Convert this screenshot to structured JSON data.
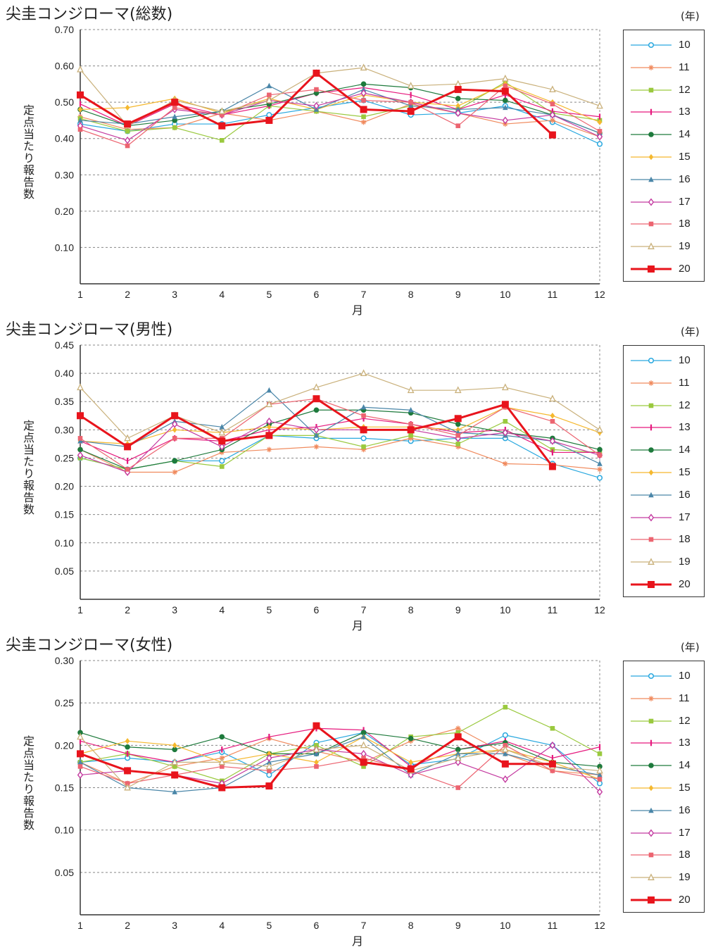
{
  "chart_data": [
    {
      "type": "line",
      "title": "尖圭コンジローマ(総数)",
      "unit_label": "(年)",
      "ylabel": "定点当たり報告数",
      "xlabel": "月",
      "x": [
        1,
        2,
        3,
        4,
        5,
        6,
        7,
        8,
        9,
        10,
        11,
        12
      ],
      "ylim": [
        0,
        0.7
      ],
      "yticks": [
        "0.70",
        "0.60",
        "0.50",
        "0.40",
        "0.30",
        "0.20",
        "0.10"
      ],
      "ytick_values": [
        0.7,
        0.6,
        0.5,
        0.4,
        0.3,
        0.2,
        0.1
      ],
      "grid": true,
      "legend_position": "right",
      "series": [
        {
          "name": "10",
          "color": "#29a8df",
          "marker": "circle-open",
          "values": [
            0.44,
            0.42,
            0.44,
            0.44,
            0.465,
            0.485,
            0.505,
            0.465,
            0.47,
            0.49,
            0.445,
            0.385
          ]
        },
        {
          "name": "11",
          "color": "#f08a5d",
          "marker": "star",
          "values": [
            0.46,
            0.425,
            0.43,
            0.47,
            0.45,
            0.475,
            0.445,
            0.495,
            0.47,
            0.44,
            0.45,
            0.405
          ]
        },
        {
          "name": "12",
          "color": "#9ac93e",
          "marker": "square",
          "values": [
            0.455,
            0.42,
            0.43,
            0.395,
            0.49,
            0.475,
            0.46,
            0.49,
            0.48,
            0.555,
            0.47,
            0.45
          ]
        },
        {
          "name": "13",
          "color": "#e6197d",
          "marker": "vbar",
          "values": [
            0.495,
            0.435,
            0.495,
            0.465,
            0.49,
            0.525,
            0.54,
            0.52,
            0.48,
            0.52,
            0.475,
            0.46
          ]
        },
        {
          "name": "14",
          "color": "#1e7a3c",
          "marker": "circle",
          "values": [
            0.48,
            0.435,
            0.45,
            0.475,
            0.495,
            0.525,
            0.55,
            0.54,
            0.51,
            0.505,
            0.465,
            0.415
          ]
        },
        {
          "name": "15",
          "color": "#f5b82e",
          "marker": "diamond",
          "values": [
            0.48,
            0.485,
            0.51,
            0.47,
            0.51,
            0.48,
            0.52,
            0.5,
            0.49,
            0.55,
            0.5,
            0.445
          ]
        },
        {
          "name": "16",
          "color": "#4a86a8",
          "marker": "triangle",
          "values": [
            0.45,
            0.44,
            0.46,
            0.475,
            0.545,
            0.48,
            0.535,
            0.49,
            0.48,
            0.485,
            0.465,
            0.415
          ]
        },
        {
          "name": "17",
          "color": "#c43aa0",
          "marker": "diamond-open",
          "values": [
            0.435,
            0.395,
            0.48,
            0.465,
            0.505,
            0.49,
            0.525,
            0.5,
            0.47,
            0.45,
            0.465,
            0.405
          ]
        },
        {
          "name": "18",
          "color": "#ec6470",
          "marker": "square",
          "values": [
            0.425,
            0.38,
            0.485,
            0.465,
            0.52,
            0.535,
            0.505,
            0.5,
            0.435,
            0.545,
            0.495,
            0.42
          ]
        },
        {
          "name": "19",
          "color": "#c9b07a",
          "marker": "triangle-open",
          "values": [
            0.59,
            0.435,
            0.505,
            0.475,
            0.505,
            0.58,
            0.595,
            0.545,
            0.55,
            0.565,
            0.535,
            0.49
          ]
        },
        {
          "name": "20",
          "color": "#e8141c",
          "marker": "square-bold",
          "values": [
            0.52,
            0.44,
            0.5,
            0.435,
            0.45,
            0.58,
            0.48,
            0.475,
            0.535,
            0.53,
            0.41,
            null
          ]
        }
      ]
    },
    {
      "type": "line",
      "title": "尖圭コンジローマ(男性)",
      "unit_label": "(年)",
      "ylabel": "定点当たり報告数",
      "xlabel": "月",
      "x": [
        1,
        2,
        3,
        4,
        5,
        6,
        7,
        8,
        9,
        10,
        11,
        12
      ],
      "ylim": [
        0,
        0.45
      ],
      "yticks": [
        "0.45",
        "0.40",
        "0.35",
        "0.30",
        "0.25",
        "0.20",
        "0.15",
        "0.10",
        "0.05"
      ],
      "ytick_values": [
        0.45,
        0.4,
        0.35,
        0.3,
        0.25,
        0.2,
        0.15,
        0.1,
        0.05
      ],
      "grid": true,
      "legend_position": "right",
      "series": [
        {
          "name": "10",
          "color": "#29a8df",
          "marker": "circle-open",
          "values": [
            0.25,
            0.23,
            0.245,
            0.245,
            0.29,
            0.285,
            0.285,
            0.28,
            0.285,
            0.285,
            0.24,
            0.215
          ]
        },
        {
          "name": "11",
          "color": "#f08a5d",
          "marker": "star",
          "values": [
            0.265,
            0.225,
            0.225,
            0.26,
            0.265,
            0.27,
            0.265,
            0.285,
            0.27,
            0.24,
            0.238,
            0.23
          ]
        },
        {
          "name": "12",
          "color": "#9ac93e",
          "marker": "square",
          "values": [
            0.25,
            0.23,
            0.245,
            0.235,
            0.29,
            0.29,
            0.27,
            0.29,
            0.275,
            0.315,
            0.265,
            0.26
          ]
        },
        {
          "name": "13",
          "color": "#e6197d",
          "marker": "vbar",
          "values": [
            0.28,
            0.245,
            0.285,
            0.28,
            0.3,
            0.305,
            0.32,
            0.31,
            0.295,
            0.3,
            0.26,
            0.26
          ]
        },
        {
          "name": "14",
          "color": "#1e7a3c",
          "marker": "circle",
          "values": [
            0.265,
            0.23,
            0.245,
            0.265,
            0.31,
            0.335,
            0.335,
            0.33,
            0.31,
            0.295,
            0.285,
            0.265
          ]
        },
        {
          "name": "15",
          "color": "#f5b82e",
          "marker": "diamond",
          "values": [
            0.28,
            0.275,
            0.3,
            0.295,
            0.305,
            0.3,
            0.305,
            0.305,
            0.3,
            0.34,
            0.325,
            0.295
          ]
        },
        {
          "name": "16",
          "color": "#4a86a8",
          "marker": "triangle",
          "values": [
            0.28,
            0.27,
            0.315,
            0.305,
            0.37,
            0.29,
            0.34,
            0.335,
            0.295,
            0.29,
            0.28,
            0.24
          ]
        },
        {
          "name": "17",
          "color": "#c43aa0",
          "marker": "diamond-open",
          "values": [
            0.255,
            0.225,
            0.31,
            0.27,
            0.315,
            0.3,
            0.3,
            0.3,
            0.285,
            0.295,
            0.28,
            0.255
          ]
        },
        {
          "name": "18",
          "color": "#ec6470",
          "marker": "square",
          "values": [
            0.285,
            0.23,
            0.285,
            0.285,
            0.345,
            0.355,
            0.325,
            0.31,
            0.29,
            0.34,
            0.315,
            0.255
          ]
        },
        {
          "name": "19",
          "color": "#c9b07a",
          "marker": "triangle-open",
          "values": [
            0.375,
            0.285,
            0.325,
            0.295,
            0.345,
            0.375,
            0.4,
            0.37,
            0.37,
            0.375,
            0.355,
            0.3
          ]
        },
        {
          "name": "20",
          "color": "#e8141c",
          "marker": "square-bold",
          "values": [
            0.325,
            0.27,
            0.325,
            0.28,
            0.29,
            0.355,
            0.3,
            0.3,
            0.32,
            0.345,
            0.235,
            null
          ]
        }
      ]
    },
    {
      "type": "line",
      "title": "尖圭コンジローマ(女性)",
      "unit_label": "(年)",
      "ylabel": "定点当たり報告数",
      "xlabel": "月",
      "x": [
        1,
        2,
        3,
        4,
        5,
        6,
        7,
        8,
        9,
        10,
        11,
        12
      ],
      "ylim": [
        0,
        0.3
      ],
      "yticks": [
        "0.30",
        "0.25",
        "0.20",
        "0.15",
        "0.10",
        "0.05"
      ],
      "ytick_values": [
        0.3,
        0.25,
        0.2,
        0.15,
        0.1,
        0.05
      ],
      "grid": true,
      "legend_position": "right",
      "series": [
        {
          "name": "10",
          "color": "#29a8df",
          "marker": "circle-open",
          "values": [
            0.18,
            0.185,
            0.18,
            0.192,
            0.165,
            0.203,
            0.215,
            0.177,
            0.184,
            0.212,
            0.2,
            0.155
          ]
        },
        {
          "name": "11",
          "color": "#f08a5d",
          "marker": "star",
          "values": [
            0.18,
            0.155,
            0.175,
            0.185,
            0.208,
            0.193,
            0.18,
            0.205,
            0.22,
            0.19,
            0.17,
            0.165
          ]
        },
        {
          "name": "12",
          "color": "#9ac93e",
          "marker": "square",
          "values": [
            0.18,
            0.19,
            0.175,
            0.158,
            0.19,
            0.2,
            0.175,
            0.21,
            0.215,
            0.245,
            0.22,
            0.19
          ]
        },
        {
          "name": "13",
          "color": "#e6197d",
          "marker": "vbar",
          "values": [
            0.205,
            0.19,
            0.18,
            0.195,
            0.21,
            0.22,
            0.218,
            0.175,
            0.195,
            0.205,
            0.185,
            0.198
          ]
        },
        {
          "name": "14",
          "color": "#1e7a3c",
          "marker": "circle",
          "values": [
            0.215,
            0.198,
            0.195,
            0.21,
            0.19,
            0.19,
            0.215,
            0.208,
            0.195,
            0.203,
            0.18,
            0.175
          ]
        },
        {
          "name": "15",
          "color": "#f5b82e",
          "marker": "diamond",
          "values": [
            0.19,
            0.205,
            0.2,
            0.18,
            0.19,
            0.18,
            0.21,
            0.18,
            0.19,
            0.195,
            0.18,
            0.16
          ]
        },
        {
          "name": "16",
          "color": "#4a86a8",
          "marker": "triangle",
          "values": [
            0.18,
            0.15,
            0.145,
            0.15,
            0.18,
            0.19,
            0.21,
            0.165,
            0.19,
            0.19,
            0.175,
            0.165
          ]
        },
        {
          "name": "17",
          "color": "#c43aa0",
          "marker": "diamond-open",
          "values": [
            0.165,
            0.17,
            0.165,
            0.155,
            0.185,
            0.195,
            0.19,
            0.165,
            0.18,
            0.16,
            0.2,
            0.145
          ]
        },
        {
          "name": "18",
          "color": "#ec6470",
          "marker": "square",
          "values": [
            0.175,
            0.155,
            0.165,
            0.175,
            0.17,
            0.175,
            0.185,
            0.17,
            0.15,
            0.2,
            0.17,
            0.16
          ]
        },
        {
          "name": "19",
          "color": "#c9b07a",
          "marker": "triangle-open",
          "values": [
            0.21,
            0.15,
            0.18,
            0.18,
            0.175,
            0.195,
            0.2,
            0.17,
            0.185,
            0.195,
            0.175,
            0.17
          ]
        },
        {
          "name": "20",
          "color": "#e8141c",
          "marker": "square-bold",
          "values": [
            0.19,
            0.17,
            0.165,
            0.15,
            0.152,
            0.223,
            0.18,
            0.172,
            0.21,
            0.178,
            0.178,
            null
          ]
        }
      ]
    }
  ]
}
